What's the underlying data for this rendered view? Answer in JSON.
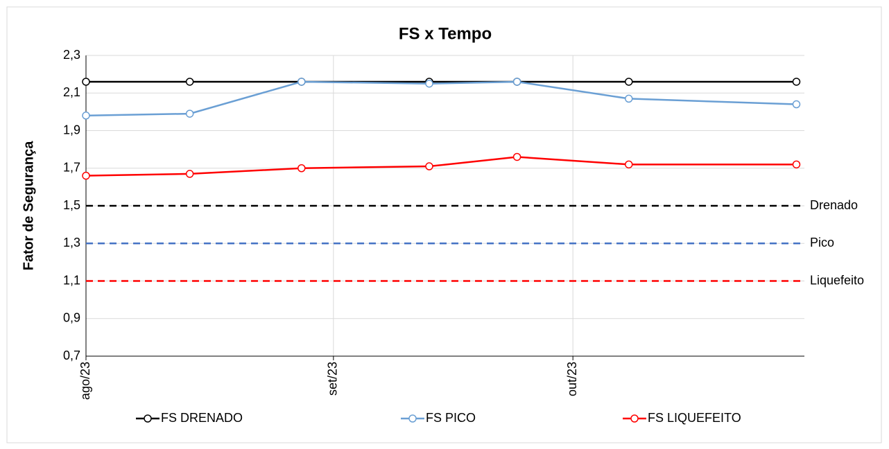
{
  "chart_data": {
    "type": "line",
    "title": "FS x Tempo",
    "y_label": "Fator de Segurança",
    "x": [
      0,
      13,
      27,
      43,
      54,
      68,
      89
    ],
    "xlim": [
      0,
      90
    ],
    "xticks": [
      {
        "value": 0,
        "label": "ago/23"
      },
      {
        "value": 31,
        "label": "set/23"
      },
      {
        "value": 61,
        "label": "out/23"
      }
    ],
    "ylim": [
      0.7,
      2.3
    ],
    "yticks": [
      {
        "value": 0.7,
        "label": "0,7"
      },
      {
        "value": 0.9,
        "label": "0,9"
      },
      {
        "value": 1.1,
        "label": "1,1"
      },
      {
        "value": 1.3,
        "label": "1,3"
      },
      {
        "value": 1.5,
        "label": "1,5"
      },
      {
        "value": 1.7,
        "label": "1,7"
      },
      {
        "value": 1.9,
        "label": "1,9"
      },
      {
        "value": 2.1,
        "label": "2,1"
      },
      {
        "value": 2.3,
        "label": "2,3"
      }
    ],
    "grid": true,
    "legend": "bottom",
    "series": [
      {
        "name": "FS DRENADO",
        "color": "#000000",
        "values": [
          2.16,
          2.16,
          2.16,
          2.16,
          2.16,
          2.16,
          2.16
        ]
      },
      {
        "name": "FS PICO",
        "color": "#6a9fd4",
        "values": [
          1.98,
          1.99,
          2.16,
          2.15,
          2.16,
          2.07,
          2.04
        ]
      },
      {
        "name": "FS LIQUEFEITO",
        "color": "#ff0000",
        "values": [
          1.66,
          1.67,
          1.7,
          1.71,
          1.76,
          1.72,
          1.72
        ]
      }
    ],
    "reference_lines": [
      {
        "name": "Drenado",
        "value": 1.5,
        "color": "#000000"
      },
      {
        "name": "Pico",
        "value": 1.3,
        "color": "#4472c4"
      },
      {
        "name": "Liquefeito",
        "value": 1.1,
        "color": "#ff0000"
      }
    ]
  }
}
